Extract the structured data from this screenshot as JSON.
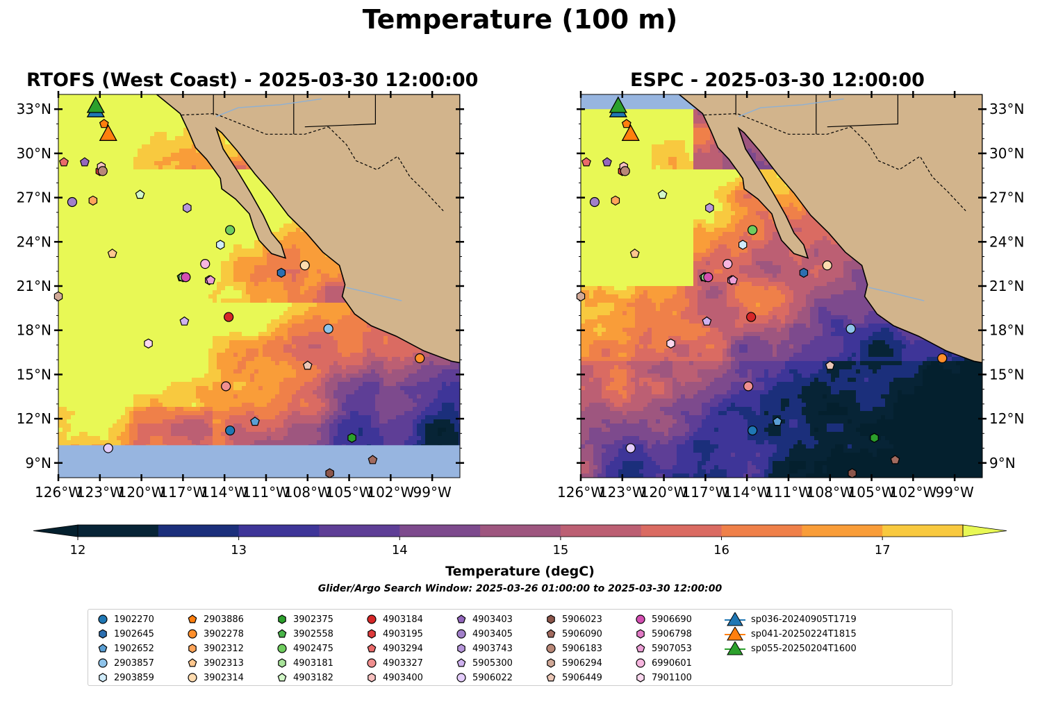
{
  "figure_title": "Temperature (100 m)",
  "panels": [
    {
      "id": "rtofs",
      "title": "RTOFS (West Coast) - 2025-03-30 12:00:00"
    },
    {
      "id": "espc",
      "title": "ESPC - 2025-03-30 12:00:00"
    }
  ],
  "map_extent": {
    "lon_min": -126,
    "lon_max": -97,
    "lat_min": 8,
    "lat_max": 34
  },
  "axes": {
    "lat_ticks": [
      33,
      30,
      27,
      24,
      21,
      18,
      15,
      12,
      9
    ],
    "lat_tick_labels": [
      "33°N",
      "30°N",
      "27°N",
      "24°N",
      "21°N",
      "18°N",
      "15°N",
      "12°N",
      "9°N"
    ],
    "lon_ticks": [
      -126,
      -123,
      -120,
      -117,
      -114,
      -111,
      -108,
      -105,
      -102,
      -99
    ],
    "lon_tick_labels": [
      "126°W",
      "123°W",
      "120°W",
      "117°W",
      "114°W",
      "111°W",
      "108°W",
      "105°W",
      "102°W",
      "99°W"
    ]
  },
  "colorbar": {
    "label": "Temperature (degC)",
    "vmin": 12,
    "vmax": 17.5,
    "extend": "both",
    "ticks": [
      12,
      13,
      14,
      15,
      16,
      17
    ],
    "tick_labels": [
      "12",
      "13",
      "14",
      "15",
      "16",
      "17"
    ],
    "colors": [
      "#072436",
      "#1b2f7b",
      "#3e3598",
      "#5e3e96",
      "#7d4a8d",
      "#9e567f",
      "#bc5f73",
      "#da6b62",
      "#ef8049",
      "#f99d39",
      "#f8c93f"
    ],
    "under_color": "#04202e",
    "over_color": "#e8f855"
  },
  "colors": {
    "land": "#d2b48c",
    "mask": "#97b5e0",
    "coast": "#000000",
    "river": "#8fb0d2"
  },
  "search_window_text": "Glider/Argo Search Window: 2025-03-26 01:00:00 to 2025-03-30 12:00:00",
  "legend": [
    {
      "label": "1902270",
      "marker": "circle",
      "color": "#1f77b4"
    },
    {
      "label": "1902645",
      "marker": "hexagon",
      "color": "#2c6fb0"
    },
    {
      "label": "1902652",
      "marker": "pentagon",
      "color": "#5a9fd4"
    },
    {
      "label": "2903857",
      "marker": "circle",
      "color": "#8ec3ea"
    },
    {
      "label": "2903859",
      "marker": "hexagon",
      "color": "#d0ecfb"
    },
    {
      "label": "2903886",
      "marker": "pentagon",
      "color": "#ff7f0e"
    },
    {
      "label": "3902278",
      "marker": "circle",
      "color": "#ff8f2c"
    },
    {
      "label": "3902312",
      "marker": "hexagon",
      "color": "#ffa55a"
    },
    {
      "label": "3902313",
      "marker": "pentagon",
      "color": "#ffc78e"
    },
    {
      "label": "3902314",
      "marker": "circle",
      "color": "#ffdcb0"
    },
    {
      "label": "3902375",
      "marker": "hexagon",
      "color": "#2ca02c"
    },
    {
      "label": "3902558",
      "marker": "pentagon",
      "color": "#49b449"
    },
    {
      "label": "4902475",
      "marker": "circle",
      "color": "#6fcd5e"
    },
    {
      "label": "4903181",
      "marker": "hexagon",
      "color": "#a8e39a"
    },
    {
      "label": "4903182",
      "marker": "pentagon",
      "color": "#d2f7c8"
    },
    {
      "label": "4903184",
      "marker": "circle",
      "color": "#d62728"
    },
    {
      "label": "4903195",
      "marker": "hexagon",
      "color": "#de3b3c"
    },
    {
      "label": "4903294",
      "marker": "pentagon",
      "color": "#ea6a6a"
    },
    {
      "label": "4903327",
      "marker": "circle",
      "color": "#f08f8f"
    },
    {
      "label": "4903400",
      "marker": "hexagon",
      "color": "#f7c1c0"
    },
    {
      "label": "4903403",
      "marker": "pentagon",
      "color": "#9467bd"
    },
    {
      "label": "4903405",
      "marker": "circle",
      "color": "#a17fc9"
    },
    {
      "label": "4903743",
      "marker": "hexagon",
      "color": "#b797db"
    },
    {
      "label": "5905300",
      "marker": "pentagon",
      "color": "#cfb2ef"
    },
    {
      "label": "5906022",
      "marker": "circle",
      "color": "#e4cdfb"
    },
    {
      "label": "5906023",
      "marker": "hexagon",
      "color": "#8c564b"
    },
    {
      "label": "5906090",
      "marker": "pentagon",
      "color": "#a26b5f"
    },
    {
      "label": "5906183",
      "marker": "circle",
      "color": "#b98878"
    },
    {
      "label": "5906294",
      "marker": "hexagon",
      "color": "#d1a998"
    },
    {
      "label": "5906449",
      "marker": "pentagon",
      "color": "#ebc7b7"
    },
    {
      "label": "5906690",
      "marker": "circle",
      "color": "#d44fb2"
    },
    {
      "label": "5906798",
      "marker": "hexagon",
      "color": "#e17ac5"
    },
    {
      "label": "5907053",
      "marker": "pentagon",
      "color": "#ec9fd6"
    },
    {
      "label": "6990601",
      "marker": "circle",
      "color": "#f7b6df"
    },
    {
      "label": "7901100",
      "marker": "hexagon",
      "color": "#fbd8ef"
    },
    {
      "label": "sp036-20240905T1719",
      "marker": "triangle",
      "color": "#1f77b4"
    },
    {
      "label": "sp041-20250224T1815",
      "marker": "triangle",
      "color": "#ff7f0e"
    },
    {
      "label": "sp055-20250204T1600",
      "marker": "triangle",
      "color": "#2ca02c"
    }
  ],
  "observations": [
    {
      "id": "1902270",
      "lon": -113.6,
      "lat": 11.2
    },
    {
      "id": "1902645",
      "lon": -109.9,
      "lat": 21.9
    },
    {
      "id": "1902652",
      "lon": -111.8,
      "lat": 11.8
    },
    {
      "id": "2903857",
      "lon": -106.5,
      "lat": 18.1
    },
    {
      "id": "2903859",
      "lon": -114.3,
      "lat": 23.8
    },
    {
      "id": "2903886",
      "lon": -122.7,
      "lat": 32.0
    },
    {
      "id": "3902278",
      "lon": -99.9,
      "lat": 16.1
    },
    {
      "id": "3902312",
      "lon": -123.5,
      "lat": 26.8
    },
    {
      "id": "3902313",
      "lon": -122.1,
      "lat": 23.2
    },
    {
      "id": "3902314",
      "lon": -108.2,
      "lat": 22.4
    },
    {
      "id": "3902375",
      "lon": -104.8,
      "lat": 10.7
    },
    {
      "id": "3902558",
      "lon": -117.1,
      "lat": 21.6
    },
    {
      "id": "4902475",
      "lon": -113.6,
      "lat": 24.8
    },
    {
      "id": "4903181",
      "lon": -117.0,
      "lat": 21.6
    },
    {
      "id": "4903182",
      "lon": -120.1,
      "lat": 27.2
    },
    {
      "id": "4903184",
      "lon": -113.7,
      "lat": 18.9
    },
    {
      "id": "4903195",
      "lon": -123.0,
      "lat": 28.8
    },
    {
      "id": "4903294",
      "lon": -125.6,
      "lat": 29.4
    },
    {
      "id": "4903327",
      "lon": -113.9,
      "lat": 14.2
    },
    {
      "id": "4903400",
      "lon": -122.9,
      "lat": 29.1
    },
    {
      "id": "4903403",
      "lon": -124.1,
      "lat": 29.4
    },
    {
      "id": "4903405",
      "lon": -125.0,
      "lat": 26.7
    },
    {
      "id": "4903743",
      "lon": -116.7,
      "lat": 26.3
    },
    {
      "id": "5905300",
      "lon": -116.9,
      "lat": 18.6
    },
    {
      "id": "5906022",
      "lon": -122.4,
      "lat": 10.0
    },
    {
      "id": "5906023",
      "lon": -106.4,
      "lat": 8.3
    },
    {
      "id": "5906090",
      "lon": -103.3,
      "lat": 9.2
    },
    {
      "id": "5906183",
      "lon": -122.8,
      "lat": 28.8
    },
    {
      "id": "5906294",
      "lon": -126.0,
      "lat": 20.3
    },
    {
      "id": "5906449",
      "lon": -108.0,
      "lat": 15.6
    },
    {
      "id": "5906690",
      "lon": -116.8,
      "lat": 21.6
    },
    {
      "id": "5906798",
      "lon": -115.1,
      "lat": 21.4
    },
    {
      "id": "5907053",
      "lon": -115.0,
      "lat": 21.4
    },
    {
      "id": "6990601",
      "lon": -115.4,
      "lat": 22.5
    },
    {
      "id": "7901100",
      "lon": -119.5,
      "lat": 17.1
    }
  ],
  "gliders": [
    {
      "id": "sp036-20240905T1719",
      "lon": -123.3,
      "lat": 32.9
    },
    {
      "id": "sp041-20250224T1815",
      "lon": -122.4,
      "lat": 31.3
    },
    {
      "id": "sp055-20250204T1600",
      "lon": -123.3,
      "lat": 33.2
    }
  ]
}
